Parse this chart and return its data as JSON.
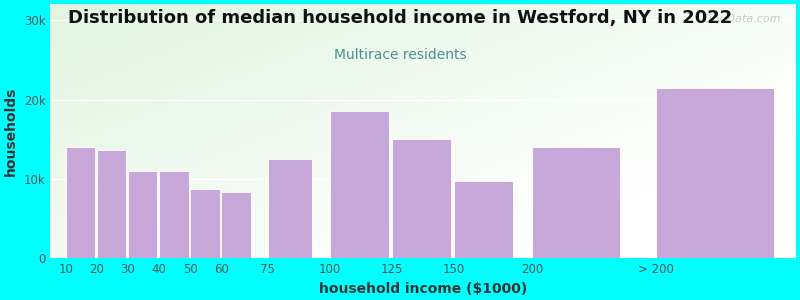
{
  "title": "Distribution of median household income in Westford, NY in 2022",
  "subtitle": "Multirace residents",
  "xlabel": "household income ($1000)",
  "ylabel": "households",
  "background_color": "#00FFFF",
  "bar_color": "#C8A8D8",
  "categories": [
    "10",
    "20",
    "30",
    "40",
    "50",
    "60",
    "75",
    "100",
    "125",
    "150",
    "200",
    "> 200"
  ],
  "values": [
    14000,
    13700,
    11000,
    11000,
    8700,
    8400,
    12500,
    18500,
    15000,
    9800,
    14000,
    21500
  ],
  "ylim": [
    0,
    32000
  ],
  "yticks": [
    0,
    10000,
    20000,
    30000
  ],
  "ytick_labels": [
    "0",
    "10k",
    "20k",
    "30k"
  ],
  "watermark": "City-Data.com",
  "title_fontsize": 13,
  "subtitle_fontsize": 10,
  "axis_label_fontsize": 10,
  "subtitle_color": "#4a9090",
  "title_color": "#111111",
  "tick_color": "#555555",
  "plot_bg_green": [
    0.88,
    0.96,
    0.88
  ],
  "plot_bg_white": [
    1.0,
    1.0,
    1.0
  ],
  "x_positions": [
    0,
    1,
    2,
    3,
    4,
    5,
    6.5,
    8.5,
    10.5,
    12.5,
    15,
    19
  ],
  "bar_widths": [
    0.95,
    0.95,
    0.95,
    0.95,
    0.95,
    0.95,
    1.42,
    1.9,
    1.9,
    1.9,
    2.85,
    3.8
  ]
}
